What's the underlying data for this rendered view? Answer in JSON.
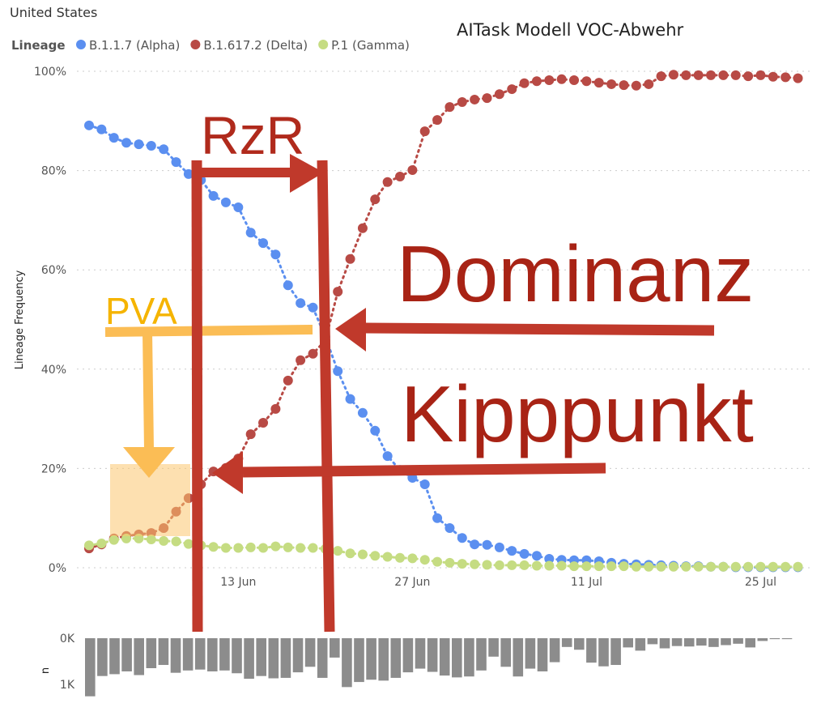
{
  "header": {
    "title": "United States",
    "annotation": "AITask Modell VOC-Abwehr"
  },
  "annotations": {
    "rzr": "RzR",
    "dominanz": "Dominanz",
    "kipppunkt": "Kipppunkt",
    "pva": "PVA"
  },
  "chart_data": [
    {
      "type": "line",
      "legend_title": "Lineage",
      "ylabel": "Lineage Frequency",
      "categories": [
        "1 Jun",
        "2 Jun",
        "3 Jun",
        "4 Jun",
        "5 Jun",
        "6 Jun",
        "7 Jun",
        "8 Jun",
        "9 Jun",
        "10 Jun",
        "11 Jun",
        "12 Jun",
        "13 Jun",
        "14 Jun",
        "15 Jun",
        "16 Jun",
        "17 Jun",
        "18 Jun",
        "19 Jun",
        "20 Jun",
        "21 Jun",
        "22 Jun",
        "23 Jun",
        "24 Jun",
        "25 Jun",
        "26 Jun",
        "27 Jun",
        "28 Jun",
        "29 Jun",
        "30 Jun",
        "1 Jul",
        "2 Jul",
        "3 Jul",
        "4 Jul",
        "5 Jul",
        "6 Jul",
        "7 Jul",
        "8 Jul",
        "9 Jul",
        "10 Jul",
        "11 Jul",
        "12 Jul",
        "13 Jul",
        "14 Jul",
        "15 Jul",
        "16 Jul",
        "17 Jul",
        "18 Jul",
        "19 Jul",
        "20 Jul",
        "21 Jul",
        "22 Jul",
        "23 Jul",
        "24 Jul",
        "25 Jul",
        "26 Jul",
        "27 Jul",
        "28 Jul"
      ],
      "xticks": [
        "13 Jun",
        "27 Jun",
        "11 Jul",
        "25 Jul"
      ],
      "ylim": [
        0,
        100
      ],
      "yticks": [
        {
          "value": 0,
          "label": "0%"
        },
        {
          "value": 20,
          "label": "20%"
        },
        {
          "value": 40,
          "label": "40%"
        },
        {
          "value": 60,
          "label": "60%"
        },
        {
          "value": 80,
          "label": "80%"
        },
        {
          "value": 100,
          "label": "100%"
        }
      ],
      "grid": true,
      "series": [
        {
          "name": "B.1.1.7 (Alpha)",
          "color": "#5b8ff0",
          "values": [
            89.1,
            88.3,
            86.6,
            85.6,
            85.3,
            85.0,
            84.3,
            81.7,
            79.3,
            78.1,
            74.9,
            73.6,
            72.6,
            67.5,
            65.4,
            63.1,
            56.9,
            53.3,
            52.4,
            46.5,
            39.6,
            34.0,
            31.2,
            27.6,
            22.5,
            19.7,
            18.1,
            16.8,
            10.0,
            8.0,
            6.0,
            4.7,
            4.6,
            4.1,
            3.4,
            2.8,
            2.4,
            1.8,
            1.6,
            1.5,
            1.5,
            1.3,
            1.0,
            0.8,
            0.7,
            0.6,
            0.5,
            0.4,
            0.3,
            0.3,
            0.2,
            0.2,
            0.1,
            0.1,
            0.1,
            0.1,
            0.1,
            0.1
          ]
        },
        {
          "name": "B.1.617.2 (Delta)",
          "color": "#b84a45",
          "values": [
            3.9,
            4.7,
            5.9,
            6.4,
            6.7,
            7.0,
            8.0,
            11.3,
            14.0,
            16.8,
            19.4,
            20.1,
            22.0,
            26.9,
            29.2,
            32.0,
            37.7,
            41.8,
            43.1,
            45.8,
            55.6,
            62.2,
            68.4,
            74.2,
            77.7,
            78.8,
            80.1,
            87.9,
            90.2,
            92.8,
            93.8,
            94.3,
            94.6,
            95.4,
            96.4,
            97.6,
            98.0,
            98.2,
            98.4,
            98.2,
            98.0,
            97.7,
            97.4,
            97.2,
            97.1,
            97.4,
            99.0,
            99.3,
            99.2,
            99.2,
            99.2,
            99.2,
            99.2,
            99.0,
            99.2,
            98.9,
            98.8,
            98.6
          ]
        },
        {
          "name": "P.1 (Gamma)",
          "color": "#c5dc82",
          "values": [
            4.5,
            4.9,
            5.6,
            5.9,
            5.9,
            5.7,
            5.4,
            5.3,
            4.8,
            4.5,
            4.2,
            4.0,
            4.0,
            4.1,
            4.0,
            4.3,
            4.1,
            4.0,
            4.0,
            3.8,
            3.4,
            2.9,
            2.7,
            2.4,
            2.2,
            2.0,
            1.9,
            1.6,
            1.2,
            1.0,
            0.8,
            0.7,
            0.6,
            0.5,
            0.5,
            0.5,
            0.4,
            0.4,
            0.4,
            0.3,
            0.3,
            0.3,
            0.3,
            0.3,
            0.2,
            0.2,
            0.2,
            0.2,
            0.2,
            0.2,
            0.2,
            0.2,
            0.2,
            0.2,
            0.2,
            0.2,
            0.2,
            0.2
          ]
        }
      ]
    },
    {
      "type": "bar",
      "ylabel": "n",
      "color": "#8c8c8c",
      "ylim": [
        0,
        1300
      ],
      "yticks": [
        {
          "value": 0,
          "label": "0K"
        },
        {
          "value": 1000,
          "label": "1K"
        }
      ],
      "values": [
        1260,
        820,
        780,
        720,
        800,
        650,
        580,
        750,
        700,
        680,
        720,
        700,
        760,
        880,
        820,
        870,
        860,
        740,
        620,
        860,
        420,
        1060,
        950,
        900,
        920,
        860,
        740,
        660,
        730,
        810,
        850,
        830,
        700,
        400,
        620,
        830,
        660,
        720,
        520,
        190,
        250,
        530,
        610,
        580,
        200,
        270,
        130,
        220,
        170,
        180,
        160,
        190,
        150,
        120,
        200,
        60,
        20,
        20
      ]
    }
  ]
}
